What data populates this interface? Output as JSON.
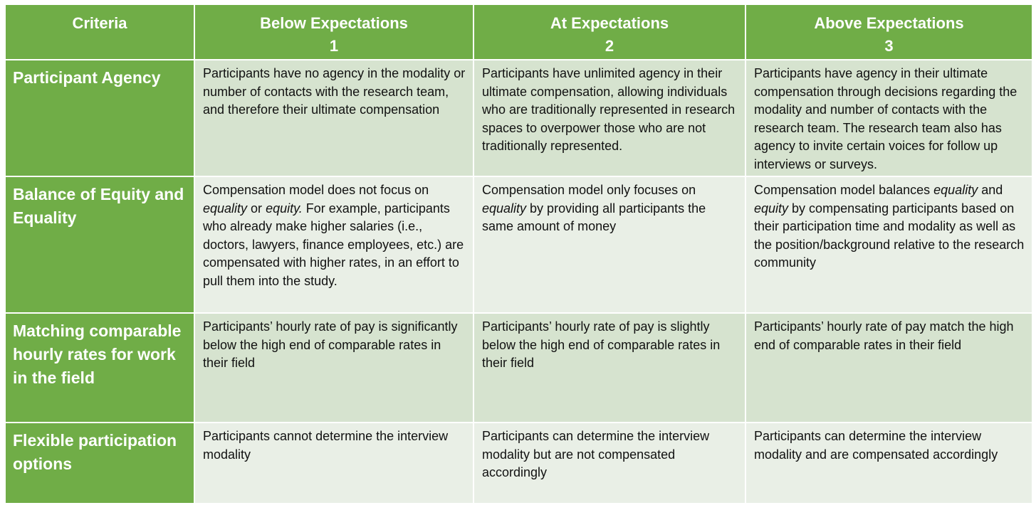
{
  "header": {
    "criteria": "Criteria",
    "below": {
      "title": "Below Expectations",
      "score": "1"
    },
    "at": {
      "title": "At Expectations",
      "score": "2"
    },
    "above": {
      "title": "Above Expectations",
      "score": "3"
    }
  },
  "rows": [
    {
      "criteria": "Participant Agency",
      "below": "Participants have no agency in the modality or number of contacts with the research team, and therefore their ultimate compensation",
      "at": "Participants have unlimited agency in their ultimate compensation, allowing individuals who are traditionally represented in research spaces to overpower those who are not traditionally represented.",
      "above": "Participants have agency in their ultimate compensation through decisions regarding the modality and number of contacts with the research team. The research team also has agency to invite certain voices for follow up interviews or surveys."
    },
    {
      "criteria": "Balance of Equity and Equality",
      "below": {
        "p1": "Compensation model does not focus on ",
        "em1": "equality",
        "p2": " or ",
        "em2": "equity.",
        "p3": " For example, participants who already make higher salaries (i.e., doctors, lawyers, finance employees, etc.) are compensated with higher rates, in an effort to pull them into the study."
      },
      "at": {
        "p1": "Compensation model only focuses on ",
        "em1": "equality",
        "p2": " by providing all participants the same amount of money"
      },
      "above": {
        "p1": "Compensation model balances ",
        "em1": "equality",
        "p2": " and ",
        "em2": "equity",
        "p3": " by compensating participants based on their participation time and modality as well as the position/background relative to the research community"
      }
    },
    {
      "criteria": "Matching comparable hourly rates for work in the field",
      "below": "Participants’ hourly rate of pay is significantly below the high end of comparable rates in their field",
      "at": "Participants’ hourly rate of pay is slightly below the high end of comparable rates in their field",
      "above": "Participants’ hourly rate of pay match the high end of comparable rates in their field"
    },
    {
      "criteria": "Flexible participation options",
      "below": "Participants cannot determine the interview modality",
      "at": "Participants can determine the interview modality but are not compensated accordingly",
      "above": "Participants can determine the interview modality and are compensated accordingly"
    }
  ],
  "colors": {
    "header_green": "#70ad47",
    "row_dark": "#d6e3cf",
    "row_light": "#e9efe6"
  }
}
